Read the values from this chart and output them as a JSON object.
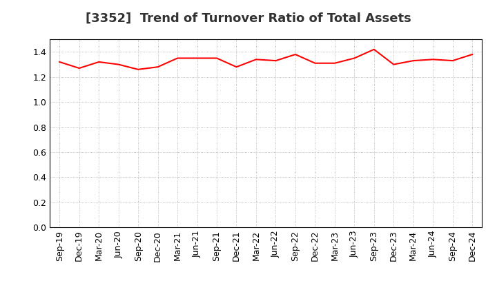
{
  "title": "[3352]  Trend of Turnover Ratio of Total Assets",
  "x_labels": [
    "Sep-19",
    "Dec-19",
    "Mar-20",
    "Jun-20",
    "Sep-20",
    "Dec-20",
    "Mar-21",
    "Jun-21",
    "Sep-21",
    "Dec-21",
    "Mar-22",
    "Jun-22",
    "Sep-22",
    "Dec-22",
    "Mar-23",
    "Jun-23",
    "Sep-23",
    "Dec-23",
    "Mar-24",
    "Jun-24",
    "Sep-24",
    "Dec-24"
  ],
  "y_values": [
    1.32,
    1.27,
    1.32,
    1.3,
    1.26,
    1.28,
    1.35,
    1.35,
    1.35,
    1.28,
    1.34,
    1.33,
    1.38,
    1.31,
    1.31,
    1.35,
    1.42,
    1.3,
    1.33,
    1.34,
    1.33,
    1.38
  ],
  "line_color": "#ff0000",
  "line_width": 1.5,
  "ylim": [
    0.0,
    1.5
  ],
  "yticks": [
    0.0,
    0.2,
    0.4,
    0.6,
    0.8,
    1.0,
    1.2,
    1.4
  ],
  "background_color": "#ffffff",
  "grid_color": "#aaaaaa",
  "title_fontsize": 13,
  "tick_fontsize": 9
}
